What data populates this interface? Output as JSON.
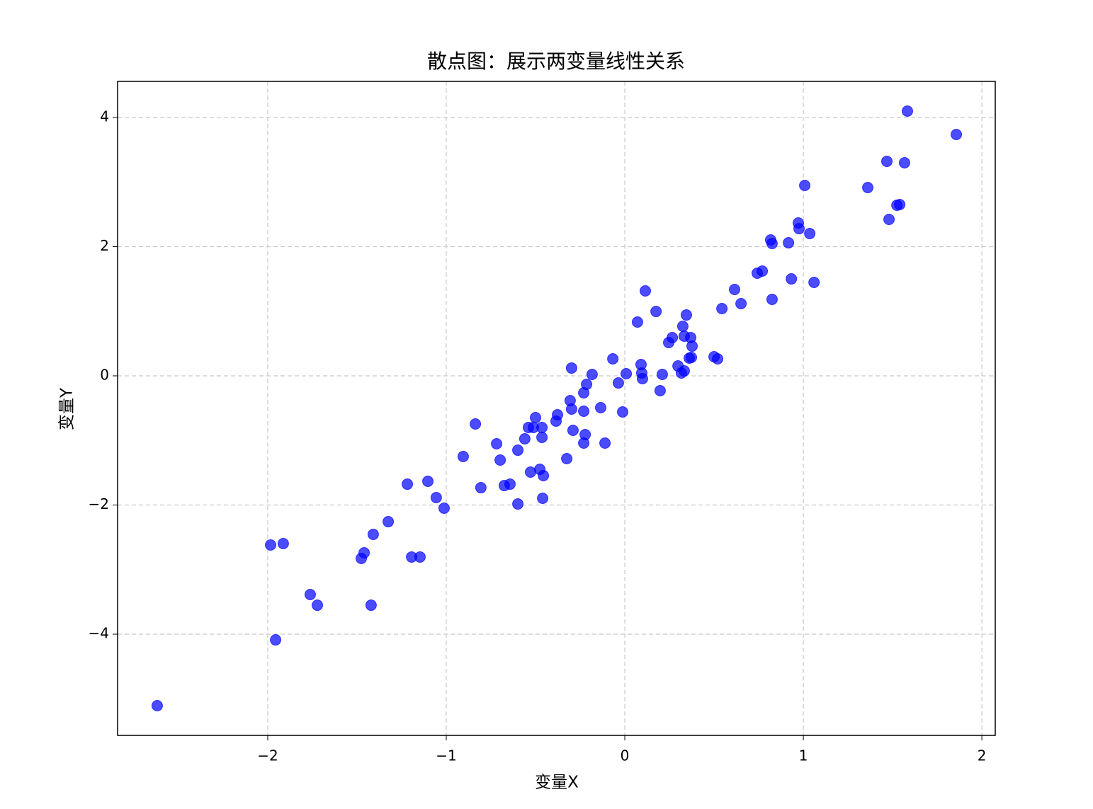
{
  "chart_data": {
    "type": "scatter",
    "title": "散点图：展示两变量线性关系",
    "xlabel": "变量X",
    "ylabel": "变量Y",
    "color": "#0000ff",
    "alpha": 0.7,
    "grid": true,
    "xlim": [
      -2.841,
      2.075
    ],
    "ylim": [
      -5.567,
      4.559
    ],
    "xticks": [
      {
        "value": -2,
        "label": "−2"
      },
      {
        "value": -1,
        "label": "−1"
      },
      0,
      1,
      2
    ],
    "yticks": [
      {
        "value": -4,
        "label": "−4"
      },
      {
        "value": -2,
        "label": "−2"
      },
      0,
      2,
      4
    ],
    "x": [
      -2.619,
      -1.984,
      -1.913,
      -1.956,
      -1.762,
      -1.722,
      -1.476,
      -1.46,
      -1.421,
      -1.409,
      -1.325,
      -1.218,
      -1.194,
      -1.147,
      -1.103,
      -1.056,
      -1.012,
      -0.905,
      -0.837,
      -0.806,
      -0.718,
      -0.698,
      -0.675,
      -0.643,
      -0.599,
      -0.599,
      -0.56,
      -0.54,
      -0.528,
      -0.512,
      -0.5,
      -0.476,
      -0.464,
      -0.464,
      -0.456,
      -0.46,
      -0.385,
      -0.377,
      -0.325,
      -0.306,
      -0.298,
      -0.298,
      -0.29,
      -0.23,
      -0.23,
      -0.23,
      -0.222,
      -0.214,
      -0.183,
      -0.135,
      -0.111,
      -0.067,
      -0.036,
      -0.012,
      0.008,
      0.071,
      0.091,
      0.095,
      0.099,
      0.115,
      0.175,
      0.198,
      0.21,
      0.246,
      0.266,
      0.298,
      0.317,
      0.325,
      0.333,
      0.333,
      0.345,
      0.361,
      0.369,
      0.373,
      0.377,
      0.5,
      0.52,
      0.544,
      0.615,
      0.651,
      0.742,
      0.77,
      0.817,
      0.825,
      0.825,
      0.917,
      0.933,
      0.972,
      0.976,
      1.008,
      1.036,
      1.06,
      1.361,
      1.468,
      1.48,
      1.524,
      1.54,
      1.567,
      1.583,
      1.857
    ],
    "values": [
      -5.107,
      -2.619,
      -2.597,
      -4.088,
      -3.386,
      -3.551,
      -2.827,
      -2.74,
      -3.551,
      -2.455,
      -2.258,
      -1.677,
      -2.805,
      -2.805,
      -1.633,
      -1.885,
      -2.049,
      -1.249,
      -0.745,
      -1.732,
      -1.052,
      -1.304,
      -1.699,
      -1.677,
      -1.151,
      -1.984,
      -0.975,
      -0.8,
      -1.49,
      -0.8,
      -0.647,
      -1.447,
      -0.8,
      -0.953,
      -1.545,
      -1.896,
      -0.701,
      -0.603,
      -1.282,
      -0.384,
      0.121,
      -0.515,
      -0.844,
      -0.263,
      -0.548,
      -1.041,
      -0.91,
      -0.132,
      0.022,
      -0.493,
      -1.041,
      0.263,
      -0.11,
      -0.559,
      0.033,
      0.833,
      0.175,
      0.044,
      -0.044,
      1.315,
      0.997,
      -0.23,
      0.022,
      0.515,
      0.592,
      0.153,
      0.044,
      0.767,
      0.077,
      0.614,
      0.942,
      0.274,
      0.592,
      0.285,
      0.46,
      0.296,
      0.263,
      1.041,
      1.337,
      1.118,
      1.589,
      1.622,
      2.104,
      2.049,
      1.184,
      2.06,
      1.501,
      2.367,
      2.279,
      2.948,
      2.203,
      1.447,
      2.915,
      3.321,
      2.422,
      2.641,
      2.652,
      3.299,
      4.099,
      3.737
    ]
  }
}
